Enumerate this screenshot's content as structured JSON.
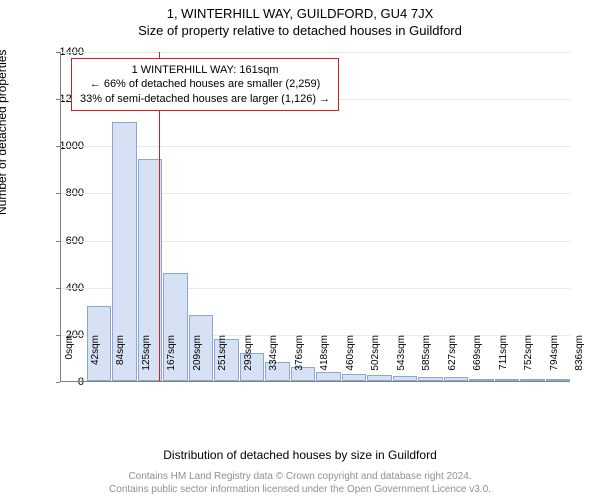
{
  "header": {
    "address": "1, WINTERHILL WAY, GUILDFORD, GU4 7JX",
    "subtitle": "Size of property relative to detached houses in Guildford"
  },
  "chart": {
    "type": "histogram",
    "y_axis": {
      "label": "Number of detached properties",
      "min": 0,
      "max": 1400,
      "ticks": [
        0,
        200,
        400,
        600,
        800,
        1000,
        1200,
        1400
      ]
    },
    "x_axis": {
      "label": "Distribution of detached houses by size in Guildford",
      "tick_labels": [
        "0sqm",
        "42sqm",
        "84sqm",
        "125sqm",
        "167sqm",
        "209sqm",
        "251sqm",
        "293sqm",
        "334sqm",
        "376sqm",
        "418sqm",
        "460sqm",
        "502sqm",
        "543sqm",
        "585sqm",
        "627sqm",
        "669sqm",
        "711sqm",
        "752sqm",
        "794sqm",
        "836sqm"
      ]
    },
    "bars": {
      "values": [
        0,
        320,
        1100,
        940,
        460,
        280,
        180,
        120,
        80,
        60,
        40,
        30,
        25,
        20,
        15,
        15,
        10,
        10,
        8,
        5
      ],
      "fill_color": "#d6e2f3",
      "border_color": "#8aa8d6"
    },
    "marker": {
      "x_value_sqm": 161,
      "x_max_sqm": 836,
      "color": "#d02020"
    },
    "annotation": {
      "line1": "1 WINTERHILL WAY: 161sqm",
      "line2": "← 66% of detached houses are smaller (2,259)",
      "line3": "33% of semi-detached houses are larger (1,126) →",
      "border_color": "#d02020",
      "bg_color": "#ffffff"
    },
    "background_color": "#ffffff",
    "grid_color": "#e8e8e8"
  },
  "footer": {
    "line1": "Contains HM Land Registry data © Crown copyright and database right 2024.",
    "line2": "Contains public sector information licensed under the Open Government Licence v3.0."
  }
}
